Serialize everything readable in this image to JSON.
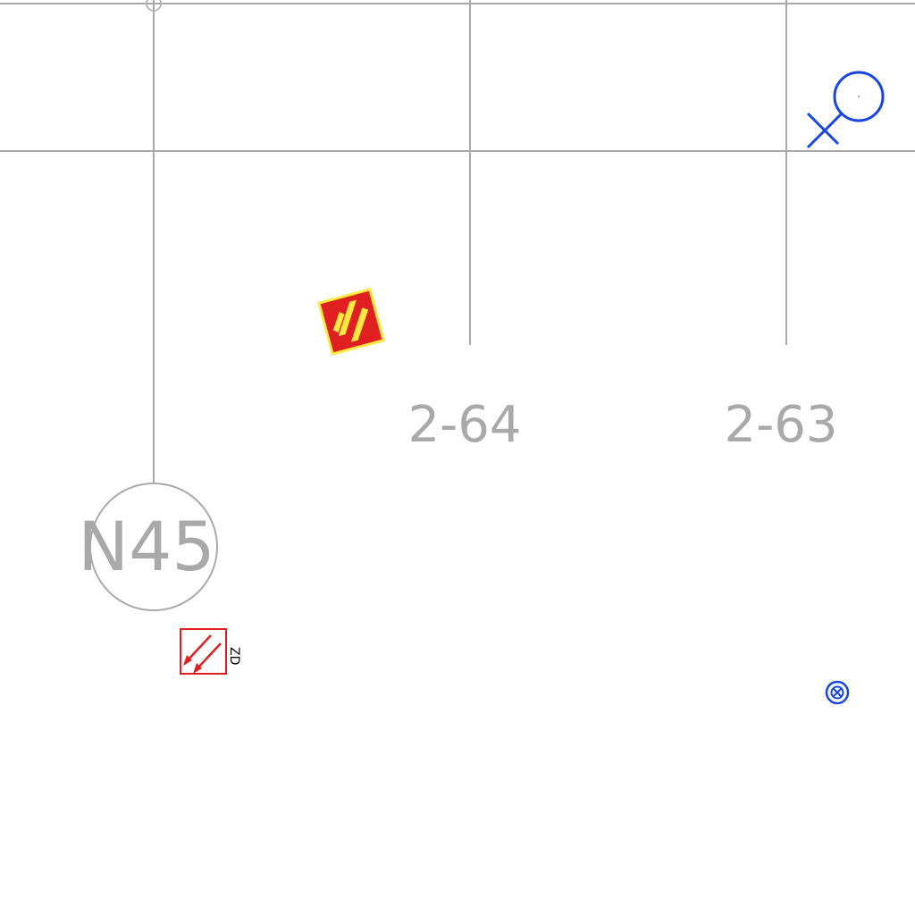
{
  "grid_labels": {
    "column_a": "2-64",
    "column_b": "2-63"
  },
  "axis_bubble": {
    "label": "N45"
  },
  "symbols": {
    "evacuation_sign_text": "ZD",
    "hazard_icon": "hazard-stripes-icon",
    "arrow_icon": "diagonal-arrows-icon",
    "female_icon": "female-symbol-icon",
    "circle_x_icon": "circle-x-icon"
  },
  "colors": {
    "grid_line": "#a9a9a9",
    "blue_symbol": "#1846e0",
    "red_symbol": "#e02020",
    "yellow_symbol": "#ffe840"
  }
}
